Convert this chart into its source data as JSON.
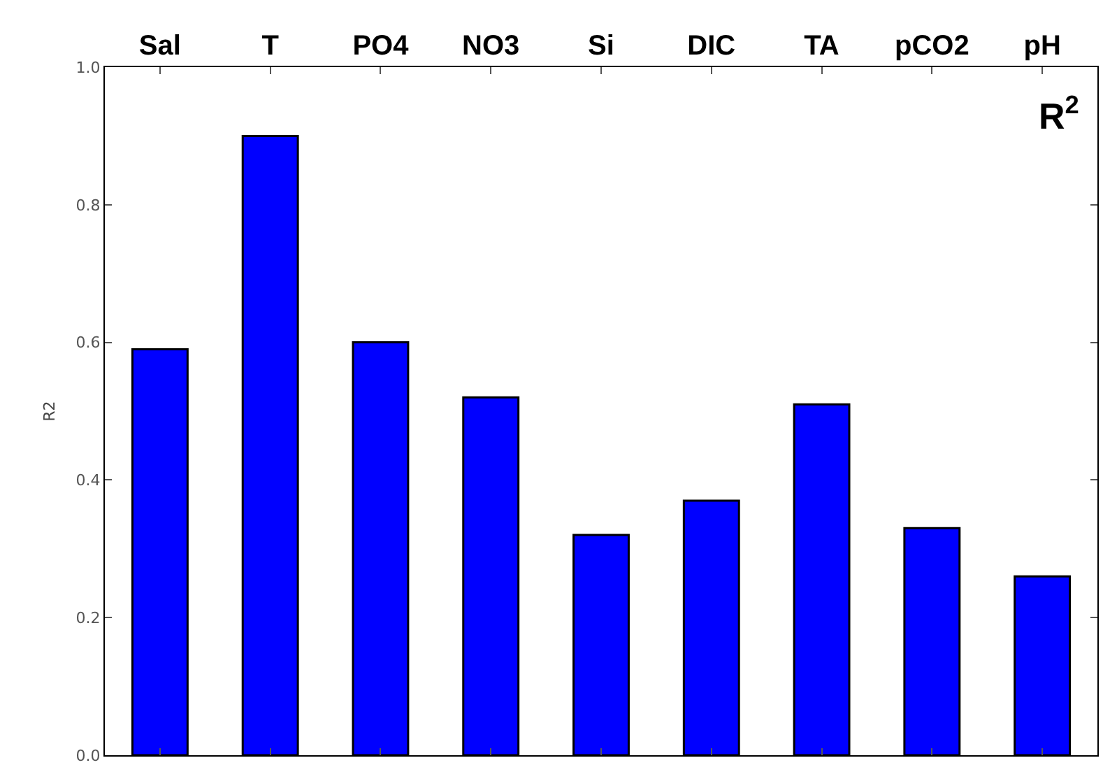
{
  "chart_data": {
    "type": "bar",
    "ylabel": "R2",
    "categories": [
      "Sal",
      "T",
      "PO4",
      "NO3",
      "Si",
      "DIC",
      "TA",
      "pCO2",
      "pH"
    ],
    "values": [
      0.59,
      0.9,
      0.6,
      0.52,
      0.32,
      0.37,
      0.51,
      0.33,
      0.26
    ],
    "color": "#0000ff",
    "ylim": [
      0,
      1.0
    ],
    "yticks": [
      {
        "value": 0,
        "label": "0.0"
      },
      0.2,
      0.4,
      0.6,
      0.8,
      {
        "value": 1.0,
        "label": "1.0"
      }
    ],
    "annotations": [
      "R$^{2}$"
    ]
  }
}
